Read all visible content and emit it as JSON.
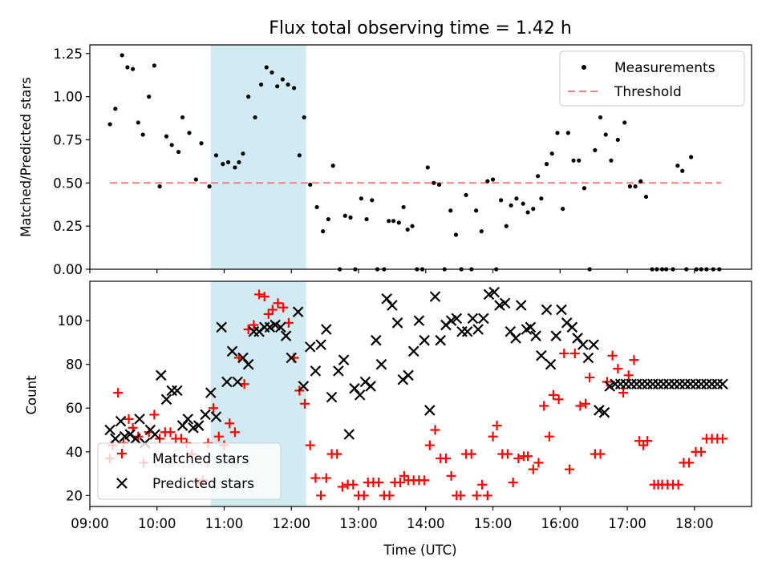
{
  "figure": {
    "title": "Flux total observing time = 1.42 h",
    "xlabel": "Time (UTC)"
  },
  "chart_data": [
    {
      "type": "scatter",
      "title": "Flux total observing time = 1.42 h",
      "ylabel": "Matched/Predicted stars",
      "xlim": [
        9.0,
        18.85
      ],
      "ylim": [
        0,
        1.3
      ],
      "yticks": [
        0,
        0.25,
        0.5,
        0.75,
        1.0,
        1.25
      ],
      "ytick_labels": [
        "0.00",
        "0.25",
        "0.50",
        "0.75",
        "1.00",
        "1.25"
      ],
      "grid": false,
      "legend_position": "top-right",
      "shaded_span": {
        "from": 10.8,
        "to": 12.22,
        "color": "#add8e6"
      },
      "series": [
        {
          "name": "Measurements",
          "marker": "dot",
          "color": "#000000",
          "x": [
            9.3,
            9.38,
            9.48,
            9.56,
            9.64,
            9.72,
            9.79,
            9.88,
            9.96,
            10.04,
            10.14,
            10.22,
            10.32,
            10.38,
            10.48,
            10.58,
            10.66,
            10.78,
            10.88,
            10.98,
            11.06,
            11.16,
            11.22,
            11.28,
            11.36,
            11.46,
            11.55,
            11.63,
            11.71,
            11.79,
            11.87,
            11.95,
            12.04,
            12.12,
            12.19,
            12.28,
            12.38,
            12.47,
            12.55,
            12.62,
            12.72,
            12.8,
            12.88,
            12.95,
            13.04,
            13.12,
            13.2,
            13.28,
            13.38,
            13.45,
            13.52,
            13.6,
            13.67,
            13.73,
            13.8,
            13.87,
            13.95,
            14.03,
            14.12,
            14.2,
            14.28,
            14.37,
            14.45,
            14.53,
            14.6,
            14.68,
            14.75,
            14.83,
            14.92,
            15.0,
            15.05,
            15.12,
            15.2,
            15.27,
            15.35,
            15.45,
            15.52,
            15.6,
            15.67,
            15.72,
            15.8,
            15.88,
            15.96,
            16.04,
            16.12,
            16.2,
            16.28,
            16.36,
            16.44,
            16.52,
            16.6,
            16.68,
            16.76,
            16.86,
            16.96,
            17.04,
            17.12,
            17.2,
            17.28,
            17.37,
            17.44,
            17.52,
            17.58,
            17.68,
            17.75,
            17.82,
            17.88,
            17.95,
            18.03,
            18.1,
            18.18,
            18.28,
            18.37
          ],
          "y": [
            0.84,
            0.93,
            1.24,
            1.17,
            1.16,
            0.85,
            0.78,
            1.0,
            1.18,
            0.48,
            0.77,
            0.72,
            0.68,
            0.88,
            0.79,
            0.52,
            0.73,
            0.48,
            0.66,
            0.61,
            0.62,
            0.59,
            0.62,
            0.67,
            1.0,
            0.88,
            1.07,
            1.17,
            1.14,
            1.06,
            1.1,
            1.07,
            1.05,
            0.66,
            0.88,
            0.49,
            0.36,
            0.22,
            0.29,
            0.6,
            0.0,
            0.31,
            0.3,
            0.0,
            0.41,
            0.29,
            0.4,
            0.0,
            0.0,
            0.28,
            0.28,
            0.27,
            0.36,
            0.23,
            0.25,
            0.0,
            0.0,
            0.59,
            0.5,
            0.49,
            0.0,
            0.34,
            0.2,
            0.0,
            0.43,
            0.0,
            0.34,
            0.22,
            0.51,
            0.52,
            0.0,
            0.4,
            0.25,
            0.37,
            0.41,
            0.38,
            0.33,
            0.35,
            0.54,
            0.41,
            0.61,
            0.67,
            0.79,
            0.35,
            0.79,
            0.63,
            0.63,
            0.47,
            0.0,
            0.69,
            0.88,
            0.78,
            0.63,
            0.75,
            0.85,
            0.48,
            0.48,
            0.51,
            0.42,
            0.0,
            0.0,
            0.0,
            0.0,
            0.0,
            0.6,
            0.57,
            0.0,
            0.65,
            0.0,
            0.0,
            0.0,
            0.0,
            0.0
          ]
        },
        {
          "name": "Threshold",
          "marker": "dashed-line",
          "color": "#f08080",
          "x": [
            9.3,
            18.4
          ],
          "y": [
            0.5,
            0.5
          ]
        }
      ]
    },
    {
      "type": "scatter",
      "ylabel": "Count",
      "xlabel": "Time (UTC)",
      "xlim": [
        9.0,
        18.85
      ],
      "ylim": [
        15,
        118
      ],
      "yticks": [
        20,
        40,
        60,
        80,
        100
      ],
      "ytick_labels": [
        "20",
        "40",
        "60",
        "80",
        "100"
      ],
      "xticks": [
        9,
        10,
        11,
        12,
        13,
        14,
        15,
        16,
        17,
        18
      ],
      "xtick_labels": [
        "09:00",
        "10:00",
        "11:00",
        "12:00",
        "13:00",
        "14:00",
        "15:00",
        "16:00",
        "17:00",
        "18:00"
      ],
      "grid": false,
      "legend_position": "bottom-left",
      "shaded_span": {
        "from": 10.8,
        "to": 12.22,
        "color": "#add8e6"
      },
      "series": [
        {
          "name": "Matched stars",
          "marker": "plus",
          "color": "#ff0000",
          "x": [
            9.3,
            9.34,
            9.42,
            9.5,
            9.58,
            9.64,
            9.72,
            9.8,
            9.88,
            9.96,
            10.04,
            10.12,
            10.2,
            10.28,
            10.36,
            10.44,
            10.52,
            10.6,
            10.68,
            10.76,
            10.84,
            10.92,
            11.0,
            11.08,
            11.16,
            11.22,
            11.3,
            11.36,
            11.44,
            11.52,
            11.6,
            11.66,
            11.72,
            11.8,
            11.88,
            11.96,
            12.04,
            12.12,
            12.2,
            12.28,
            12.36,
            12.44,
            12.52,
            12.6,
            12.68,
            12.76,
            12.84,
            12.92,
            13.0,
            13.08,
            13.14,
            13.22,
            13.3,
            13.38,
            13.46,
            13.54,
            13.62,
            13.68,
            13.74,
            13.82,
            13.9,
            13.98,
            14.06,
            14.14,
            14.22,
            14.3,
            14.38,
            14.46,
            14.52,
            14.6,
            14.68,
            14.76,
            14.84,
            14.92,
            15.0,
            15.06,
            15.14,
            15.22,
            15.3,
            15.38,
            15.46,
            15.52,
            15.6,
            15.68,
            15.76,
            15.84,
            15.9,
            15.98,
            16.06,
            16.14,
            16.22,
            16.3,
            16.38,
            16.44,
            16.52,
            16.6,
            16.7,
            16.78,
            16.86,
            16.94,
            17.02,
            17.1,
            17.18,
            17.24,
            17.3,
            17.4,
            17.46,
            17.52,
            17.6,
            17.68,
            17.76,
            17.84,
            17.92,
            18.02,
            18.1,
            18.18,
            18.26,
            18.34,
            18.42
          ],
          "y": [
            37,
            43,
            67,
            44,
            55,
            51,
            47,
            35,
            49,
            57,
            46,
            49,
            49,
            46,
            46,
            44,
            39,
            26,
            27,
            44,
            60,
            47,
            43,
            53,
            49,
            83,
            71,
            96,
            98,
            112,
            111,
            103,
            105,
            108,
            106,
            99,
            83,
            68,
            62,
            43,
            28,
            20,
            28,
            39,
            39,
            24,
            25,
            25,
            20,
            20,
            26,
            26,
            26,
            20,
            20,
            26,
            26,
            29,
            27,
            27,
            27,
            27,
            43,
            50,
            37,
            37,
            29,
            20,
            20,
            39,
            39,
            20,
            25,
            20,
            47,
            52,
            39,
            39,
            26,
            37,
            38,
            38,
            32,
            35,
            61,
            47,
            66,
            64,
            85,
            32,
            85,
            61,
            62,
            74,
            39,
            39,
            72,
            84,
            78,
            67,
            75,
            82,
            45,
            43,
            45,
            25,
            25,
            25,
            25,
            25,
            25,
            35,
            35,
            40,
            40,
            46,
            46,
            46,
            46
          ],
          "note_skip": true
        },
        {
          "name": "Predicted stars",
          "marker": "x",
          "color": "#000000",
          "x": [
            9.3,
            9.38,
            9.46,
            9.52,
            9.6,
            9.68,
            9.74,
            9.82,
            9.9,
            9.97,
            10.06,
            10.14,
            10.22,
            10.3,
            10.38,
            10.46,
            10.54,
            10.62,
            10.72,
            10.8,
            10.88,
            10.96,
            11.04,
            11.12,
            11.2,
            11.28,
            11.36,
            11.44,
            11.52,
            11.6,
            11.68,
            11.76,
            11.84,
            11.92,
            12.0,
            12.1,
            12.18,
            12.28,
            12.36,
            12.44,
            12.52,
            12.6,
            12.7,
            12.78,
            12.86,
            12.94,
            13.02,
            13.1,
            13.18,
            13.26,
            13.34,
            13.42,
            13.5,
            13.58,
            13.66,
            13.74,
            13.82,
            13.9,
            13.98,
            14.06,
            14.14,
            14.22,
            14.3,
            14.38,
            14.46,
            14.54,
            14.62,
            14.7,
            14.78,
            14.86,
            14.94,
            15.02,
            15.1,
            15.18,
            15.26,
            15.34,
            15.42,
            15.5,
            15.56,
            15.64,
            15.72,
            15.8,
            15.86,
            15.94,
            16.02,
            16.1,
            16.18,
            16.26,
            16.34,
            16.42,
            16.5,
            16.58,
            16.66,
            16.74,
            16.82,
            16.9,
            16.98,
            17.06,
            17.14,
            17.22,
            17.3,
            17.38,
            17.46,
            17.54,
            17.62,
            17.7,
            17.78,
            17.86,
            17.94,
            18.02,
            18.1,
            18.18,
            18.26,
            18.34,
            18.42
          ],
          "y": [
            50,
            46,
            54,
            47,
            48,
            46,
            55,
            44,
            50,
            48,
            75,
            64,
            68,
            68,
            52,
            55,
            51,
            52,
            57,
            67,
            56,
            97,
            72,
            86,
            72,
            83,
            80,
            95,
            95,
            97,
            97,
            98,
            97,
            93,
            83,
            104,
            70,
            88,
            77,
            89,
            96,
            65,
            77,
            82,
            48,
            69,
            66,
            72,
            70,
            91,
            80,
            110,
            107,
            99,
            73,
            75,
            86,
            100,
            91,
            59,
            111,
            91,
            98,
            100,
            101,
            95,
            95,
            101,
            96,
            101,
            112,
            113,
            107,
            108,
            95,
            92,
            107,
            96,
            97,
            93,
            84,
            105,
            80,
            93,
            105,
            99,
            97,
            92,
            89,
            83,
            89,
            59,
            58,
            70,
            71,
            71,
            71,
            71,
            71,
            71,
            71,
            71,
            71,
            71,
            71,
            71,
            71,
            71,
            71,
            71,
            71,
            71,
            71,
            71,
            71
          ],
          "note_skip": true
        }
      ]
    }
  ],
  "legend_top": {
    "items": [
      "Measurements",
      "Threshold"
    ]
  },
  "legend_bottom": {
    "items": [
      "Matched stars",
      "Predicted stars"
    ]
  }
}
